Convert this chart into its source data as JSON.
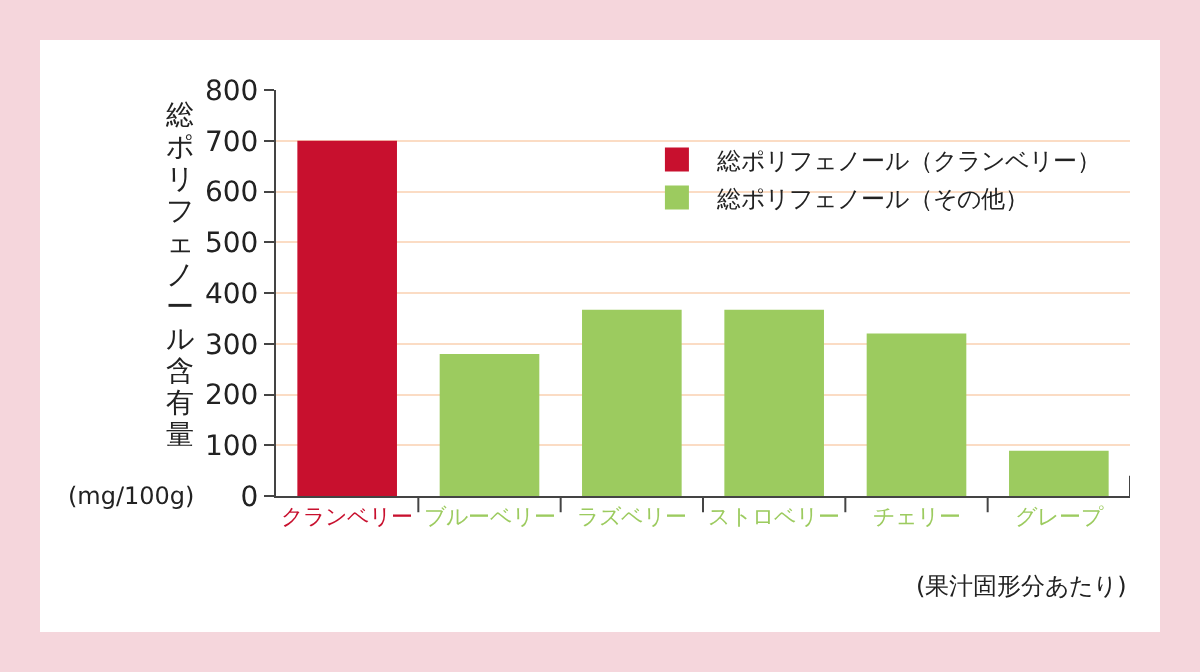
{
  "chart_data": {
    "type": "bar",
    "ylabel": "総ポリフェノール含有量",
    "categories": [
      "クランベリー",
      "ブルーベリー",
      "ラズベリー",
      "ストロベリー",
      "チェリー",
      "グレープ"
    ],
    "series": [
      {
        "name": "総ポリフェノール（クランベリー）",
        "color": "#c8102e",
        "values": [
          700,
          null,
          null,
          null,
          null,
          null
        ]
      },
      {
        "name": "総ポリフェノール（その他）",
        "color": "#9ccb5f",
        "values": [
          null,
          280,
          367,
          367,
          320,
          89
        ]
      }
    ],
    "ylim": [
      0,
      800
    ],
    "yticks": [
      0,
      100,
      200,
      300,
      400,
      500,
      600,
      700,
      800
    ],
    "grid": "y",
    "legend": "top right",
    "annotations": [
      "(mg/100g)",
      "(果汁固形分あたり)"
    ]
  }
}
